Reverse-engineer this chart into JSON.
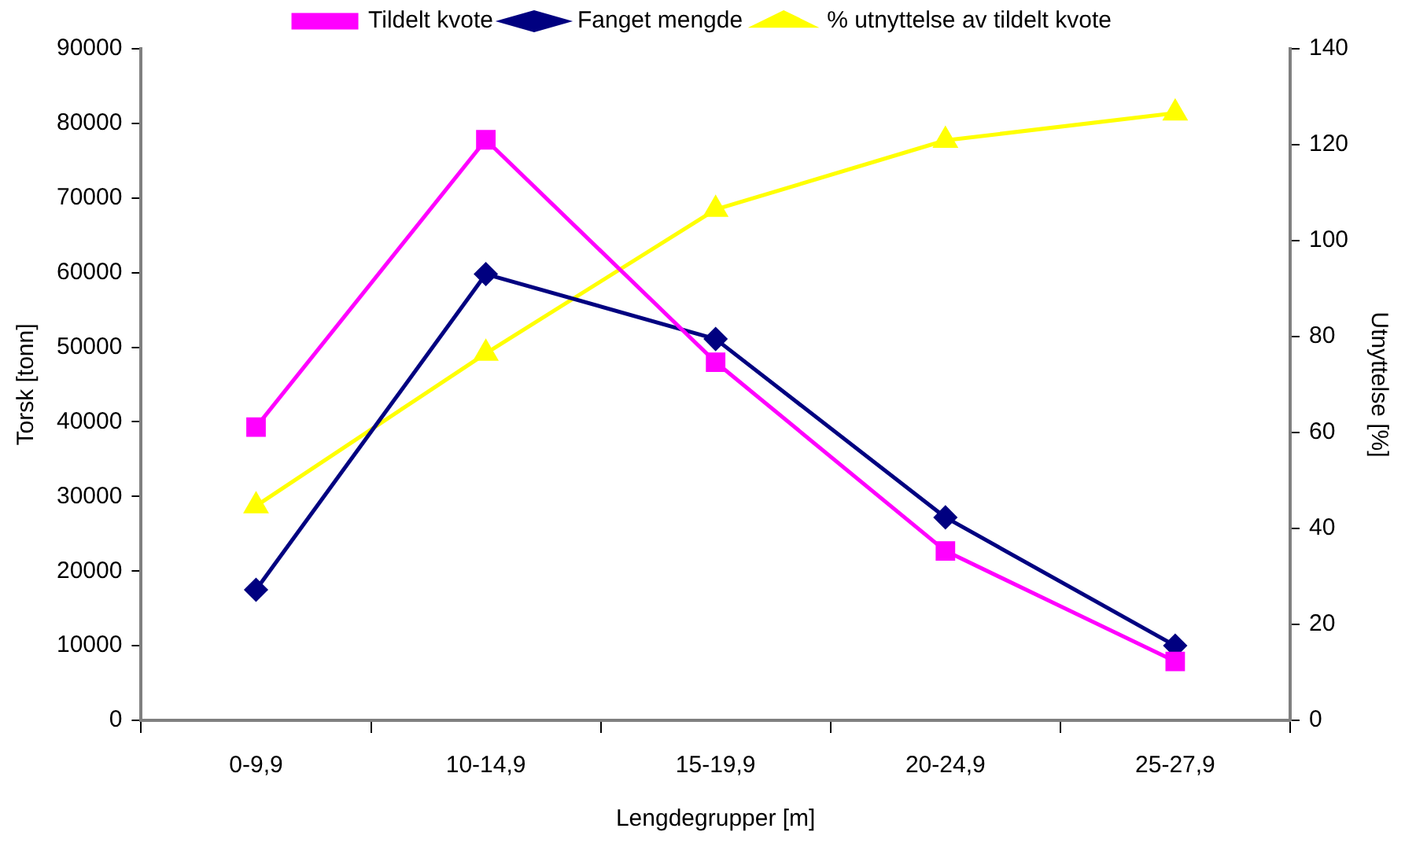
{
  "chart_data": {
    "type": "line",
    "xlabel": "Lengdegrupper [m]",
    "ylabel": "Torsk [tonn]",
    "y2label": "Utnyttelse [%]",
    "categories": [
      "0-9,9",
      "10-14,9",
      "15-19,9",
      "20-24,9",
      "25-27,9"
    ],
    "series": [
      {
        "name": "Tildelt kvote",
        "color": "#ff00ff",
        "marker": "square",
        "values": [
          39300,
          77800,
          48000,
          22700,
          7900
        ]
      },
      {
        "name": "Fanget mengde",
        "color": "#000080",
        "marker": "diamond",
        "values": [
          17500,
          59800,
          51100,
          27200,
          10000
        ]
      },
      {
        "name": "% utnyttelse av tildelt kvote",
        "color": "#ffff00",
        "marker": "triangle",
        "axis": "y2",
        "values": [
          44.7,
          76.5,
          106.5,
          120.9,
          126.6
        ]
      }
    ],
    "ylim": [
      0,
      90000
    ],
    "yticks": [
      0,
      10000,
      20000,
      30000,
      40000,
      50000,
      60000,
      70000,
      80000,
      90000
    ],
    "y2lim": [
      0,
      140
    ],
    "y2ticks": [
      0,
      20,
      40,
      60,
      80,
      100,
      120,
      140
    ],
    "grid": false,
    "legend": "top"
  }
}
